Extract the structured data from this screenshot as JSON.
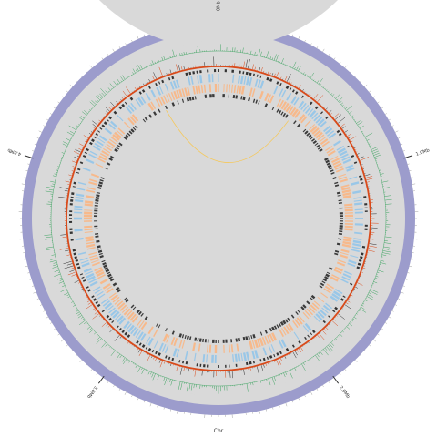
{
  "diagram": {
    "type": "circular-genome-map",
    "chromosome_label": "Chr",
    "scale_labels": [
      "0Mb",
      "1.0Mb",
      "2.0Mb",
      "3.0Mb",
      "4.0Mb"
    ],
    "colors": {
      "ideogram": "#9c9ccc",
      "gc_track_background": "#d9d9d9",
      "gc_skew_line": "#2e9e55",
      "cds_line": "#d94a1a",
      "forward_cds": "#99c7e8",
      "reverse_cds": "#f7b98b",
      "rna_marks": "#333333",
      "link": "#f5c85a",
      "axis_line": "#333333"
    },
    "tracks": [
      "ideogram",
      "gc-content",
      "gc-skew",
      "cds-density",
      "forward-strand-cds",
      "reverse-strand-cds",
      "rna-genes"
    ]
  }
}
